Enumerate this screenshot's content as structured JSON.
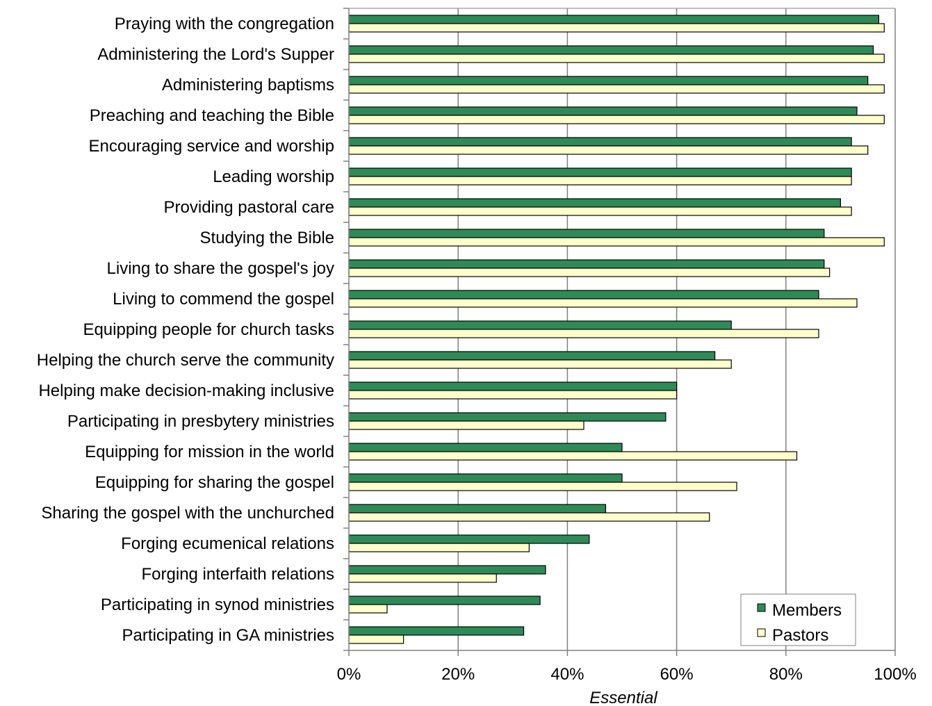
{
  "chart_data": {
    "type": "bar",
    "orientation": "horizontal",
    "categories": [
      "Praying with the congregation",
      "Administering the Lord's Supper",
      "Administering baptisms",
      "Preaching and teaching the Bible",
      "Encouraging service and worship",
      "Leading worship",
      "Providing pastoral care",
      "Studying the Bible",
      "Living to share the gospel's joy",
      "Living to commend the gospel",
      "Equipping people for church tasks",
      "Helping the church serve the community",
      "Helping make decision-making inclusive",
      "Participating in presbytery ministries",
      "Equipping for mission in the world",
      "Equipping for sharing the gospel",
      "Sharing the gospel with the unchurched",
      "Forging ecumenical relations",
      "Forging interfaith relations",
      "Participating in synod ministries",
      "Participating in GA ministries"
    ],
    "series": [
      {
        "name": "Members",
        "color": "#2e8b57",
        "values": [
          97,
          96,
          95,
          93,
          92,
          92,
          90,
          87,
          87,
          86,
          70,
          67,
          60,
          58,
          50,
          50,
          47,
          44,
          36,
          35,
          32
        ]
      },
      {
        "name": "Pastors",
        "color": "#ffffcc",
        "values": [
          98,
          98,
          98,
          98,
          95,
          92,
          92,
          98,
          88,
          93,
          86,
          70,
          60,
          43,
          82,
          71,
          66,
          33,
          27,
          7,
          10
        ]
      }
    ],
    "xlabel": "Essential",
    "ticks": [
      "0%",
      "20%",
      "40%",
      "60%",
      "80%",
      "100%"
    ],
    "xlim": [
      0,
      100
    ],
    "grid": true,
    "legend": "bottom-right"
  }
}
